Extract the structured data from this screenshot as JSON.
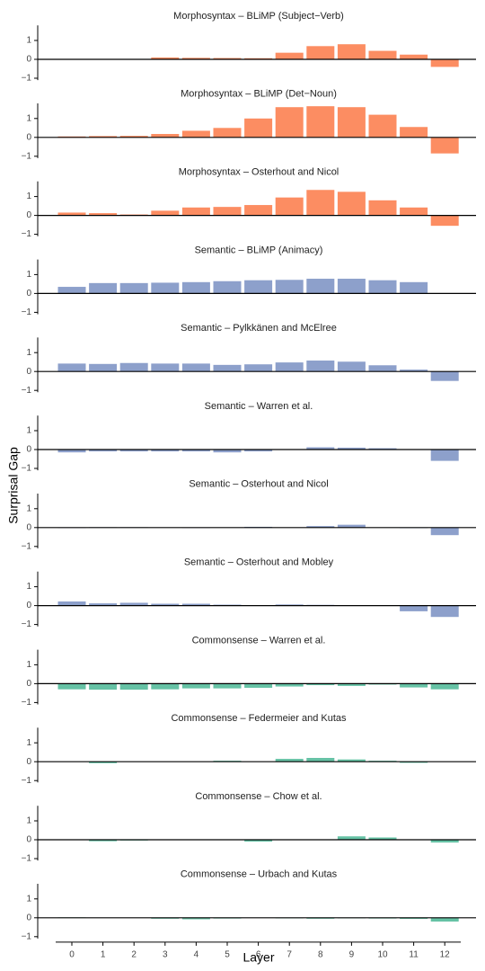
{
  "xlabel": "Layer",
  "ylabel": "Surprisal Gap",
  "categories": [
    "0",
    "1",
    "2",
    "3",
    "4",
    "5",
    "6",
    "7",
    "8",
    "9",
    "10",
    "11",
    "12"
  ],
  "chart_data": [
    {
      "type": "bar",
      "title": "Morphosyntax  –  BLiMP (Subject−Verb)",
      "color": "#fc8d62",
      "ylim": [
        -1.1,
        1.8
      ],
      "yticks": [
        {
          "value": -1,
          "label": "−1"
        },
        0,
        1
      ],
      "values": [
        0.02,
        0,
        0,
        0.1,
        0.08,
        0.07,
        0.06,
        0.35,
        0.7,
        0.8,
        0.45,
        0.25,
        -0.4
      ]
    },
    {
      "type": "bar",
      "title": "Morphosyntax  –  BLiMP (Det−Noun)",
      "color": "#fc8d62",
      "ylim": [
        -1.1,
        1.8
      ],
      "yticks": [
        {
          "value": -1,
          "label": "−1"
        },
        0,
        1
      ],
      "values": [
        0.05,
        0.07,
        0.08,
        0.18,
        0.35,
        0.5,
        1.0,
        1.6,
        1.65,
        1.6,
        1.2,
        0.55,
        -0.85
      ]
    },
    {
      "type": "bar",
      "title": "Morphosyntax  –  Osterhout and Nicol",
      "color": "#fc8d62",
      "ylim": [
        -1.1,
        1.8
      ],
      "yticks": [
        {
          "value": -1,
          "label": "−1"
        },
        0,
        1
      ],
      "values": [
        0.15,
        0.12,
        0.05,
        0.25,
        0.42,
        0.45,
        0.55,
        0.95,
        1.35,
        1.25,
        0.8,
        0.42,
        -0.55
      ]
    },
    {
      "type": "bar",
      "title": "Semantic  –  BLiMP (Animacy)",
      "color": "#8da0cb",
      "ylim": [
        -1.1,
        1.8
      ],
      "yticks": [
        {
          "value": -1,
          "label": "−1"
        },
        0,
        1
      ],
      "values": [
        0.35,
        0.55,
        0.55,
        0.57,
        0.6,
        0.65,
        0.7,
        0.72,
        0.78,
        0.78,
        0.7,
        0.6,
        -0.02
      ]
    },
    {
      "type": "bar",
      "title": "Semantic  –  Pylkkänen and McElree",
      "color": "#8da0cb",
      "ylim": [
        -1.1,
        1.8
      ],
      "yticks": [
        {
          "value": -1,
          "label": "−1"
        },
        0,
        1
      ],
      "values": [
        0.42,
        0.4,
        0.45,
        0.42,
        0.42,
        0.35,
        0.38,
        0.48,
        0.58,
        0.52,
        0.33,
        0.1,
        -0.5
      ]
    },
    {
      "type": "bar",
      "title": "Semantic  –  Warren et al.",
      "color": "#8da0cb",
      "ylim": [
        -1.1,
        1.8
      ],
      "yticks": [
        {
          "value": -1,
          "label": "−1"
        },
        0,
        1
      ],
      "values": [
        -0.15,
        -0.1,
        -0.1,
        -0.1,
        -0.1,
        -0.15,
        -0.1,
        0,
        0.12,
        0.1,
        0.07,
        0,
        -0.6
      ]
    },
    {
      "type": "bar",
      "title": "Semantic  –  Osterhout and Nicol",
      "color": "#8da0cb",
      "ylim": [
        -1.1,
        1.8
      ],
      "yticks": [
        {
          "value": -1,
          "label": "−1"
        },
        0,
        1
      ],
      "values": [
        -0.02,
        0.02,
        0.02,
        0,
        -0.02,
        0,
        0.04,
        0,
        0.08,
        0.15,
        0,
        -0.03,
        -0.4
      ]
    },
    {
      "type": "bar",
      "title": "Semantic  –  Osterhout and Mobley",
      "color": "#8da0cb",
      "ylim": [
        -1.1,
        1.8
      ],
      "yticks": [
        {
          "value": -1,
          "label": "−1"
        },
        0,
        1
      ],
      "values": [
        0.22,
        0.12,
        0.15,
        0.1,
        0.1,
        0.05,
        0.03,
        0.06,
        0.04,
        0,
        0,
        -0.3,
        -0.6
      ]
    },
    {
      "type": "bar",
      "title": "Commonsense  –  Warren et al.",
      "color": "#66c2a5",
      "ylim": [
        -1.1,
        1.8
      ],
      "yticks": [
        {
          "value": -1,
          "label": "−1"
        },
        0,
        1
      ],
      "values": [
        -0.3,
        -0.32,
        -0.32,
        -0.3,
        -0.25,
        -0.25,
        -0.22,
        -0.15,
        -0.08,
        -0.12,
        -0.05,
        -0.2,
        -0.3
      ]
    },
    {
      "type": "bar",
      "title": "Commonsense  –  Federmeier and Kutas",
      "color": "#66c2a5",
      "ylim": [
        -1.1,
        1.8
      ],
      "yticks": [
        {
          "value": -1,
          "label": "−1"
        },
        0,
        1
      ],
      "values": [
        0,
        -0.08,
        0,
        0,
        0,
        0.05,
        0,
        0.15,
        0.2,
        0.12,
        0.05,
        -0.06,
        0
      ]
    },
    {
      "type": "bar",
      "title": "Commonsense  –  Chow et al.",
      "color": "#66c2a5",
      "ylim": [
        -1.1,
        1.8
      ],
      "yticks": [
        {
          "value": -1,
          "label": "−1"
        },
        0,
        1
      ],
      "values": [
        0,
        -0.08,
        -0.04,
        0,
        0.02,
        0,
        -0.1,
        0,
        0,
        0.18,
        0.12,
        0,
        -0.15
      ]
    },
    {
      "type": "bar",
      "title": "Commonsense  –  Urbach and Kutas",
      "color": "#66c2a5",
      "ylim": [
        -1.1,
        1.8
      ],
      "yticks": [
        {
          "value": -1,
          "label": "−1"
        },
        0,
        1
      ],
      "values": [
        0.02,
        0,
        0,
        -0.05,
        -0.08,
        -0.04,
        0,
        -0.03,
        -0.05,
        -0.03,
        -0.04,
        -0.06,
        -0.2
      ]
    }
  ]
}
